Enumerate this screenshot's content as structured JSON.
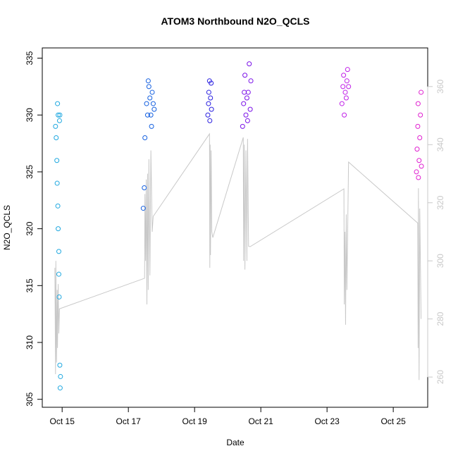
{
  "chart_data": {
    "type": "scatter",
    "title": "ATOM3 Northbound N2O_QCLS",
    "xlabel": "Date",
    "ylabel": "N2O_QCLS",
    "xlim": [
      14.4,
      26.04
    ],
    "xticks": [
      {
        "value": 15,
        "label": "Oct 15"
      },
      {
        "value": 17,
        "label": "Oct 17"
      },
      {
        "value": 19,
        "label": "Oct 19"
      },
      {
        "value": 21,
        "label": "Oct 21"
      },
      {
        "value": 23,
        "label": "Oct 23"
      },
      {
        "value": 25,
        "label": "Oct 25"
      }
    ],
    "ylim": [
      304.3,
      335.9
    ],
    "yticks": [
      305,
      310,
      315,
      320,
      325,
      330,
      335
    ],
    "y2lim": [
      249.6,
      373.3
    ],
    "y2ticks": [
      260,
      280,
      300,
      320,
      340,
      360
    ],
    "y2color": "#c8c8c8",
    "series": [
      {
        "type": "line",
        "axis": "y2",
        "color": "#c8c8c8",
        "x": [
          14.78,
          14.8,
          14.81,
          14.83,
          14.85,
          14.86,
          14.88,
          14.9,
          14.92,
          17.49,
          17.5,
          17.52,
          17.54,
          17.56,
          17.58,
          17.6,
          17.62,
          17.65,
          17.68,
          17.72,
          17.75,
          19.45,
          19.46,
          19.47,
          19.48,
          19.5,
          19.52,
          19.55,
          20.47,
          20.48,
          20.5,
          20.52,
          20.55,
          20.58,
          20.6,
          20.63,
          20.68,
          23.51,
          23.52,
          23.54,
          23.56,
          23.58,
          23.6,
          23.65,
          25.74,
          25.75,
          25.76,
          25.78,
          25.8,
          25.84
        ],
        "values": [
          297.6,
          261,
          300,
          265,
          290,
          270,
          292,
          275,
          283.5,
          294,
          323,
          300,
          328,
          285,
          330,
          290,
          335,
          295,
          338,
          310,
          315.3,
          343.7,
          297.6,
          340,
          302,
          338,
          310,
          308,
          342.5,
          300,
          340,
          297,
          338,
          300,
          342,
          305,
          304.9,
          324.8,
          285,
          310,
          278,
          316,
          290,
          334,
          313,
          270,
          325,
          259,
          318,
          280
        ]
      },
      {
        "type": "scatter",
        "color": "#1fa8e0",
        "x": [
          14.8,
          14.82,
          14.84,
          14.85,
          14.86,
          14.87,
          14.88,
          14.88,
          14.9,
          14.9,
          14.91,
          14.92,
          14.93,
          14.93,
          14.94,
          14.95
        ],
        "values": [
          329,
          328,
          326,
          324,
          331,
          322,
          330,
          320,
          318,
          316,
          314,
          329.5,
          330,
          308,
          306,
          307
        ]
      },
      {
        "type": "scatter",
        "color": "#1560e0",
        "x": [
          17.45,
          17.48,
          17.5,
          17.55,
          17.58,
          17.6,
          17.62,
          17.65,
          17.68,
          17.7,
          17.72,
          17.75,
          17.78
        ],
        "values": [
          321.8,
          323.6,
          328,
          331,
          330,
          333,
          332.5,
          331.5,
          330,
          329,
          332,
          331,
          330.5
        ]
      },
      {
        "type": "scatter",
        "color": "#2a20e0",
        "x": [
          19.4,
          19.42,
          19.43,
          19.45,
          19.46,
          19.48,
          19.5,
          19.51
        ],
        "values": [
          330,
          331,
          332,
          333,
          329.5,
          331.5,
          332.8,
          330.5
        ]
      },
      {
        "type": "scatter",
        "color": "#7a10e8",
        "x": [
          20.45,
          20.48,
          20.5,
          20.52,
          20.55,
          20.58,
          20.6,
          20.62,
          20.65,
          20.68,
          20.7
        ],
        "values": [
          329,
          331,
          332,
          333.5,
          330,
          331.5,
          329.5,
          332,
          334.5,
          330.5,
          333
        ]
      },
      {
        "type": "scatter",
        "color": "#c020e8",
        "x": [
          23.45,
          23.48,
          23.5,
          23.52,
          23.55,
          23.58,
          23.6,
          23.62,
          23.65
        ],
        "values": [
          331,
          332.5,
          333.5,
          330,
          332,
          331.5,
          333,
          334,
          332.5
        ]
      },
      {
        "type": "scatter",
        "color": "#e020d0",
        "x": [
          25.7,
          25.72,
          25.74,
          25.75,
          25.76,
          25.78,
          25.8,
          25.82,
          25.84,
          25.85
        ],
        "values": [
          325,
          327,
          329,
          331,
          324.5,
          326,
          328,
          330,
          332,
          325.5
        ]
      }
    ]
  }
}
